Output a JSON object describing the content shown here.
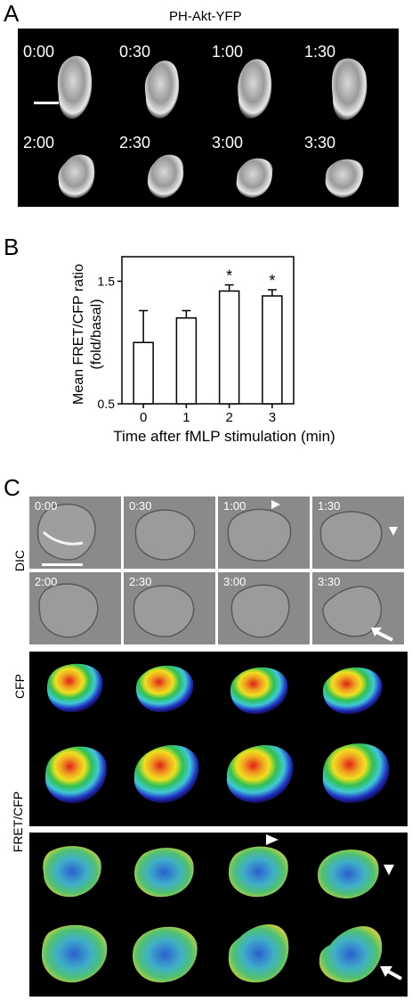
{
  "panelA": {
    "letter": "A",
    "title": "PH-Akt-YFP",
    "times": [
      "0:00",
      "0:30",
      "1:00",
      "1:30",
      "2:00",
      "2:30",
      "3:00",
      "3:30"
    ]
  },
  "panelB": {
    "letter": "B"
  },
  "chart_data": {
    "type": "bar",
    "categories": [
      "0",
      "1",
      "2",
      "3"
    ],
    "values": [
      1.0,
      1.2,
      1.42,
      1.38
    ],
    "errors": [
      0.26,
      0.06,
      0.05,
      0.05
    ],
    "significant": [
      false,
      false,
      true,
      true
    ],
    "significance_marker": "*",
    "ylabel_line1": "Mean FRET/CFP ratio",
    "ylabel_line2": "(fold/basal)",
    "xlabel": "Time after fMLP stimulation (min)",
    "ylim": [
      0.5,
      1.7
    ],
    "yticks": [
      "1.5",
      "0.5"
    ],
    "ytick_values": [
      1.5,
      0.5
    ]
  },
  "panelC": {
    "letter": "C",
    "times": [
      "0:00",
      "0:30",
      "1:00",
      "1:30",
      "2:00",
      "2:30",
      "3:00",
      "3:30"
    ],
    "row_labels": {
      "dic": "DIC",
      "cfp": "CFP",
      "fret": "FRET/CFP"
    }
  },
  "colors": {
    "background": "#000000",
    "dic_gray": "#8a8a8a",
    "heat_red": "#e0201a",
    "heat_yellow": "#f0e020",
    "heat_green": "#30c050",
    "heat_cyan": "#40c8d8",
    "heat_blue": "#2030c0"
  }
}
